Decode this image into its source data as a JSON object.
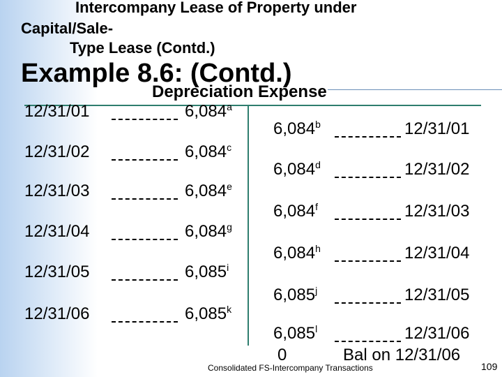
{
  "header": {
    "title_lines": [
      "Intercompany Lease of Property under",
      "Capital/Sale-",
      "Type Lease (Contd.)"
    ],
    "heading": "Example 8.6: (Contd.)"
  },
  "account": {
    "title": "Depreciation Expense",
    "debits": [
      {
        "date": "12/31/01",
        "amount": "6,084",
        "note": "a"
      },
      {
        "date": "12/31/02",
        "amount": "6,084",
        "note": "c"
      },
      {
        "date": "12/31/03",
        "amount": "6,084",
        "note": "e"
      },
      {
        "date": "12/31/04",
        "amount": "6,084",
        "note": "g"
      },
      {
        "date": "12/31/05",
        "amount": "6,085",
        "note": "i"
      },
      {
        "date": "12/31/06",
        "amount": "6,085",
        "note": "k"
      }
    ],
    "credits": [
      {
        "amount": "6,084",
        "note": "b",
        "date": "12/31/01"
      },
      {
        "amount": "6,084",
        "note": "d",
        "date": "12/31/02"
      },
      {
        "amount": "6,084",
        "note": "f",
        "date": "12/31/03"
      },
      {
        "amount": "6,084",
        "note": "h",
        "date": "12/31/04"
      },
      {
        "amount": "6,085",
        "note": "j",
        "date": "12/31/05"
      },
      {
        "amount": "6,085",
        "note": "l",
        "date": "12/31/06"
      }
    ],
    "balance": {
      "amount": "0",
      "label": "Bal on 12/31/06"
    }
  },
  "footer": {
    "text": "Consolidated FS-Intercompany Transactions",
    "page": "109"
  }
}
